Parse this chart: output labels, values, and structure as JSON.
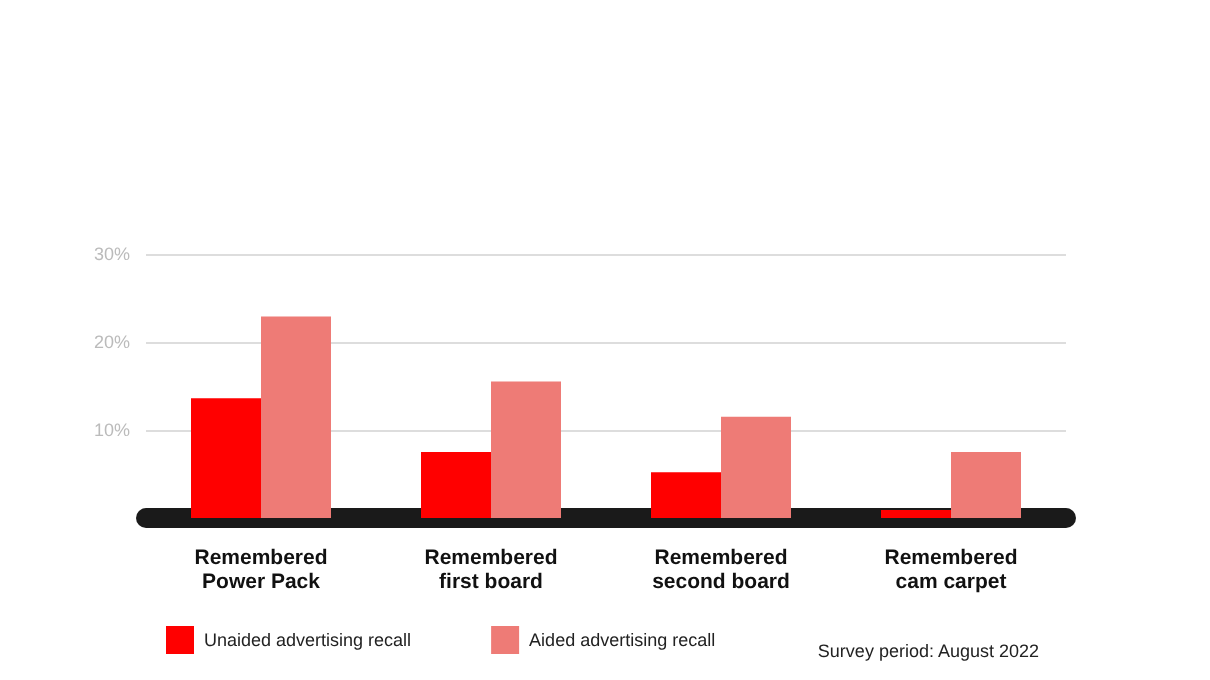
{
  "chart_data": {
    "type": "bar",
    "categories": [
      "Remembered\nPower Pack",
      "Remembered\nfirst board",
      "Remembered\nsecond board",
      "Remembered\ncam carpet"
    ],
    "series": [
      {
        "name": "Unaided advertising recall",
        "color": "#ff0000",
        "values": [
          13.6,
          7.5,
          5.2,
          0.9
        ]
      },
      {
        "name": "Aided advertising recall",
        "color": "#ee7b76",
        "values": [
          22.9,
          15.5,
          11.5,
          7.5
        ]
      }
    ],
    "ylim": [
      0,
      30
    ],
    "yticks": [
      {
        "value": 0,
        "label": null
      },
      {
        "value": 10,
        "label": "10%"
      },
      {
        "value": 20,
        "label": "20%"
      },
      {
        "value": 30,
        "label": "30%"
      }
    ],
    "grid": "y",
    "legend": "bottom left",
    "annotations": [
      "Survey period: August 2022"
    ]
  }
}
